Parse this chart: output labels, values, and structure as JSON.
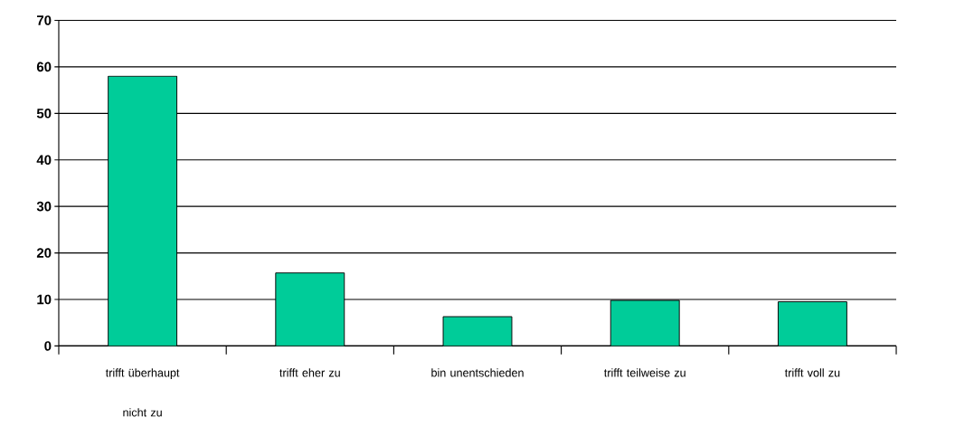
{
  "chart_data": {
    "type": "bar",
    "categories": [
      "trifft überhaupt nicht zu",
      "trifft eher zu",
      "bin unentschieden",
      "trifft teilweise zu",
      "trifft voll zu"
    ],
    "values": [
      58,
      15.7,
      6.3,
      9.8,
      9.5
    ],
    "color": "#00cc99",
    "ylim": [
      0,
      70
    ],
    "yticks": [
      0,
      10,
      20,
      30,
      40,
      50,
      60,
      70
    ],
    "grid": "y"
  }
}
